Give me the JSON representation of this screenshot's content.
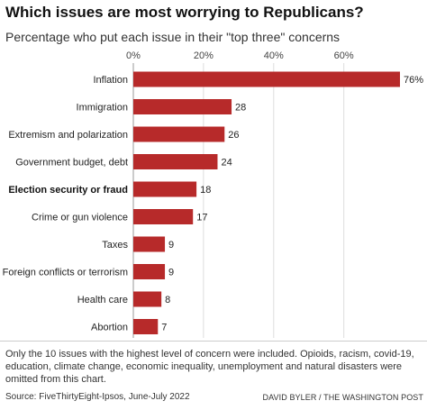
{
  "header": {
    "title": "Which issues are most worrying to Republicans?",
    "subtitle": "Percentage who put each issue in their \"top three\" concerns"
  },
  "chart_data": {
    "type": "bar",
    "orientation": "horizontal",
    "categories": [
      "Inflation",
      "Immigration",
      "Extremism and polarization",
      "Government budget, debt",
      "Election security or fraud",
      "Crime or gun violence",
      "Taxes",
      "Foreign conflicts or terrorism",
      "Health care",
      "Abortion"
    ],
    "values": [
      76,
      28,
      26,
      24,
      18,
      17,
      9,
      9,
      8,
      7
    ],
    "value_labels": [
      "76%",
      "28",
      "26",
      "24",
      "18",
      "17",
      "9",
      "9",
      "8",
      "7"
    ],
    "highlighted_category": "Election security or fraud",
    "xlim": [
      0,
      76
    ],
    "xticks": [
      0,
      20,
      40,
      60
    ],
    "xtick_labels": [
      "0%",
      "20%",
      "40%",
      "60%"
    ],
    "grid": true,
    "bar_color": "#b72a2a"
  },
  "footer": {
    "note": "Only the 10 issues with the highest level of concern were included. Opioids, racism, covid-19, education, climate change, economic inequality, unemployment and natural disasters were omitted from this chart.",
    "source": "Source: FiveThirtyEight-Ipsos, June-July 2022",
    "credit": "DAVID BYLER / THE WASHINGTON POST"
  }
}
